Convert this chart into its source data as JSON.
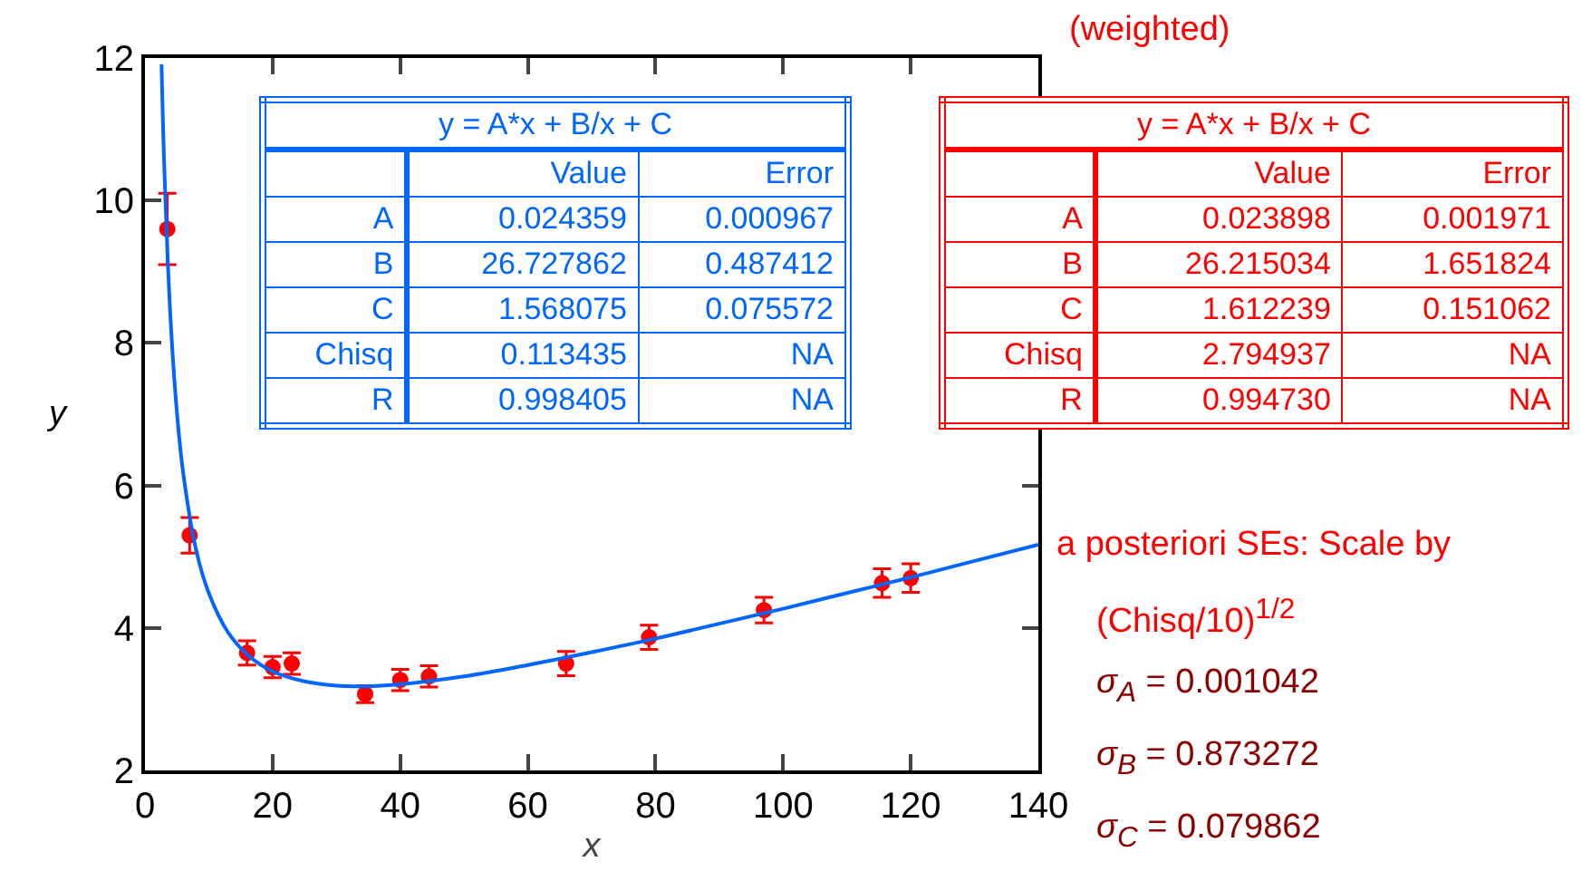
{
  "chart_data": {
    "type": "scatter",
    "xlabel": "x",
    "ylabel": "y",
    "xlim": [
      0,
      140
    ],
    "xticks": [
      0,
      20,
      40,
      60,
      80,
      100,
      120,
      140
    ],
    "ylim": [
      2,
      12
    ],
    "yticks": [
      2,
      4,
      6,
      8,
      10,
      12
    ],
    "marker": "circle",
    "series": [
      {
        "type": "scatter",
        "color": "#ff0000",
        "x": [
          3.5,
          7,
          16,
          20,
          23,
          34.5,
          40,
          44.5,
          66,
          79,
          97,
          115.5,
          120
        ],
        "values": [
          9.6,
          5.3,
          3.65,
          3.45,
          3.5,
          3.07,
          3.27,
          3.32,
          3.5,
          3.87,
          4.25,
          4.63,
          4.7
        ],
        "errors": [
          0.5,
          0.25,
          0.17,
          0.15,
          0.15,
          0.12,
          0.15,
          0.15,
          0.17,
          0.17,
          0.18,
          0.2,
          0.2
        ]
      },
      {
        "type": "line",
        "color": "#0066ff",
        "marker": "none",
        "x": [
          2.6,
          3,
          4,
          5,
          6,
          8,
          10,
          13,
          16,
          20,
          25,
          30,
          33,
          40,
          50,
          60,
          70,
          80,
          90,
          100,
          110,
          120,
          130,
          140
        ],
        "values": [
          11.91,
          10.55,
          8.35,
          7.03,
          6.17,
          5.1,
          4.49,
          3.94,
          3.63,
          3.39,
          3.25,
          3.19,
          3.18,
          3.21,
          3.32,
          3.48,
          3.66,
          3.85,
          4.06,
          4.27,
          4.49,
          4.71,
          4.94,
          5.17
        ]
      }
    ],
    "annotations": [
      "y = A*x + B/x + C",
      "Value",
      "Error",
      "A",
      "0.024359",
      "0.000967",
      "B",
      "26.727862",
      "0.487412",
      "C",
      "1.568075",
      "0.075572",
      "Chisq",
      "0.113435",
      "NA",
      "R",
      "0.998405",
      "NA",
      "y = A*x + B/x + C",
      "Value",
      "Error",
      "A",
      "0.023898",
      "0.001971",
      "B",
      "26.215034",
      "1.651824",
      "C",
      "1.612239",
      "0.151062",
      "Chisq",
      "2.794937",
      "NA",
      "R",
      "0.994730",
      "NA",
      "(weighted)",
      "a posteriori SEs:  Scale by",
      "(Chisq/10)$^{1/2}$",
      "σ$_{A}$ = 0.001042",
      "σ$_{B}$ = 0.873272",
      "σ$_{C}$ = 0.079862"
    ]
  }
}
